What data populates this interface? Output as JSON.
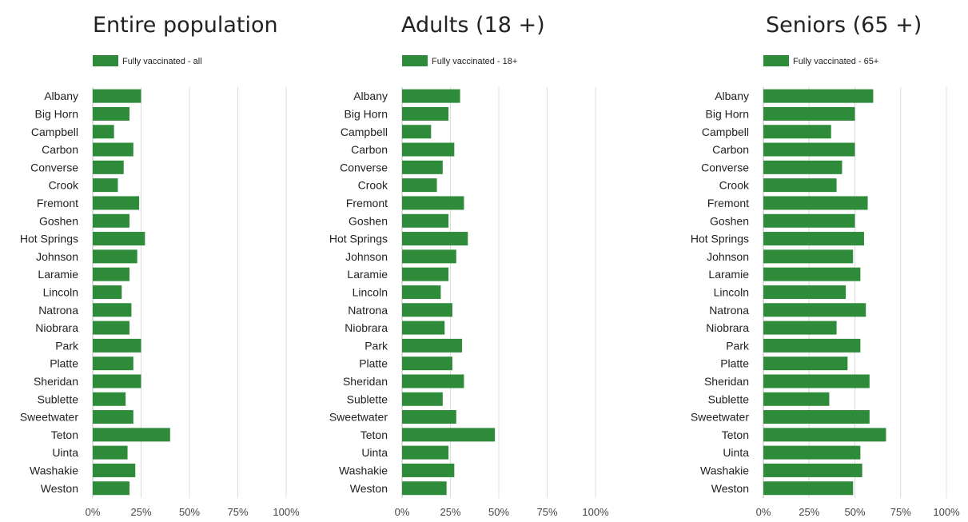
{
  "chart_data": [
    {
      "type": "bar",
      "orientation": "horizontal",
      "title": "Entire population",
      "categories": [
        "Albany",
        "Big Horn",
        "Campbell",
        "Carbon",
        "Converse",
        "Crook",
        "Fremont",
        "Goshen",
        "Hot Springs",
        "Johnson",
        "Laramie",
        "Lincoln",
        "Natrona",
        "Niobrara",
        "Park",
        "Platte",
        "Sheridan",
        "Sublette",
        "Sweetwater",
        "Teton",
        "Uinta",
        "Washakie",
        "Weston"
      ],
      "series": [
        {
          "name": "Fully vaccinated - all",
          "color": "#2e8b3a",
          "values": [
            25,
            19,
            11,
            21,
            16,
            13,
            24,
            19,
            27,
            23,
            19,
            15,
            20,
            19,
            25,
            21,
            25,
            17,
            21,
            40,
            18,
            22,
            19
          ]
        }
      ],
      "xlim": [
        0,
        100
      ],
      "xticks": [
        "0%",
        "25%",
        "50%",
        "75%",
        "100%"
      ],
      "grid": true,
      "legend": "top-left"
    },
    {
      "type": "bar",
      "orientation": "horizontal",
      "title": "Adults (18 +)",
      "categories": [
        "Albany",
        "Big Horn",
        "Campbell",
        "Carbon",
        "Converse",
        "Crook",
        "Fremont",
        "Goshen",
        "Hot Springs",
        "Johnson",
        "Laramie",
        "Lincoln",
        "Natrona",
        "Niobrara",
        "Park",
        "Platte",
        "Sheridan",
        "Sublette",
        "Sweetwater",
        "Teton",
        "Uinta",
        "Washakie",
        "Weston"
      ],
      "series": [
        {
          "name": "Fully vaccinated - 18+",
          "color": "#2e8b3a",
          "values": [
            30,
            24,
            15,
            27,
            21,
            18,
            32,
            24,
            34,
            28,
            24,
            20,
            26,
            22,
            31,
            26,
            32,
            21,
            28,
            48,
            24,
            27,
            23
          ]
        }
      ],
      "xlim": [
        0,
        100
      ],
      "xticks": [
        "0%",
        "25%",
        "50%",
        "75%",
        "100%"
      ],
      "grid": true,
      "legend": "top-left"
    },
    {
      "type": "bar",
      "orientation": "horizontal",
      "title": "Seniors (65 +)",
      "categories": [
        "Albany",
        "Big Horn",
        "Campbell",
        "Carbon",
        "Converse",
        "Crook",
        "Fremont",
        "Goshen",
        "Hot Springs",
        "Johnson",
        "Laramie",
        "Lincoln",
        "Natrona",
        "Niobrara",
        "Park",
        "Platte",
        "Sheridan",
        "Sublette",
        "Sweetwater",
        "Teton",
        "Uinta",
        "Washakie",
        "Weston"
      ],
      "series": [
        {
          "name": "Fully vaccinated - 65+",
          "color": "#2e8b3a",
          "values": [
            60,
            50,
            37,
            50,
            43,
            40,
            57,
            50,
            55,
            49,
            53,
            45,
            56,
            40,
            53,
            46,
            58,
            36,
            58,
            67,
            53,
            54,
            49
          ]
        }
      ],
      "xlim": [
        0,
        100
      ],
      "xticks": [
        "0%",
        "25%",
        "50%",
        "75%",
        "100%"
      ],
      "grid": true,
      "legend": "top-left"
    }
  ]
}
